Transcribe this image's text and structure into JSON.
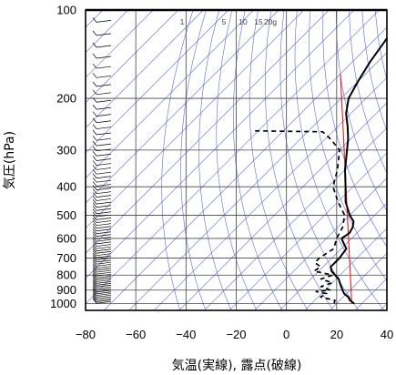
{
  "chart_data": {
    "type": "skew-t",
    "xlabel": "気温(実線), 露点(破線)",
    "ylabel": "気圧(hPa)",
    "xlim": [
      -80,
      40
    ],
    "ylim": [
      1050,
      100
    ],
    "y_scale": "log",
    "x_ticks": [
      -80,
      -60,
      -40,
      -20,
      0,
      20,
      40
    ],
    "x_tick_labels": [
      "−80",
      "−60",
      "−40",
      "−20",
      "0",
      "20",
      "40"
    ],
    "y_ticks": [
      100,
      200,
      300,
      400,
      500,
      600,
      700,
      800,
      900,
      1000
    ],
    "y_tick_labels": [
      "100",
      "200",
      "300",
      "400",
      "500",
      "600",
      "700",
      "800",
      "900",
      "1000"
    ],
    "mixing_ratio_labels": [
      "1",
      "5",
      "10",
      "15",
      "20g"
    ],
    "grid": true,
    "colors": {
      "isotherm": "#5b6bd8",
      "adiabat": "#e0201c",
      "temperature": "#000000",
      "dewpoint": "#000000",
      "grid": "#444444"
    },
    "series": [
      {
        "kind": "temperature",
        "style": "solid",
        "points": [
          [
            1000,
            27
          ],
          [
            975,
            24
          ],
          [
            950,
            22
          ],
          [
            925,
            19
          ],
          [
            900,
            17
          ],
          [
            875,
            15
          ],
          [
            850,
            13
          ],
          [
            825,
            11
          ],
          [
            800,
            8
          ],
          [
            775,
            5
          ],
          [
            750,
            3
          ],
          [
            725,
            3
          ],
          [
            700,
            3
          ],
          [
            650,
            2
          ],
          [
            625,
            -1
          ],
          [
            600,
            -4
          ],
          [
            575,
            -3
          ],
          [
            550,
            -4
          ],
          [
            525,
            -6
          ],
          [
            500,
            -10
          ],
          [
            450,
            -17
          ],
          [
            400,
            -23
          ],
          [
            350,
            -30
          ],
          [
            300,
            -37
          ],
          [
            275,
            -41
          ],
          [
            250,
            -46
          ],
          [
            225,
            -52
          ],
          [
            200,
            -57
          ],
          [
            175,
            -60
          ],
          [
            150,
            -63
          ],
          [
            130,
            -65
          ],
          [
            115,
            -67
          ],
          [
            105,
            -68
          ],
          [
            100,
            -67
          ]
        ]
      },
      {
        "kind": "dewpoint",
        "style": "dashed",
        "points": [
          [
            1000,
            19
          ],
          [
            975,
            18
          ],
          [
            950,
            11
          ],
          [
            925,
            12
          ],
          [
            910,
            7
          ],
          [
            900,
            12
          ],
          [
            875,
            7
          ],
          [
            850,
            10
          ],
          [
            825,
            4
          ],
          [
            800,
            7
          ],
          [
            775,
            -2
          ],
          [
            750,
            -1
          ],
          [
            725,
            -5
          ],
          [
            700,
            -5
          ],
          [
            650,
            -3
          ],
          [
            600,
            -6
          ],
          [
            550,
            -8
          ],
          [
            500,
            -12
          ],
          [
            450,
            -20
          ],
          [
            400,
            -28
          ],
          [
            350,
            -33
          ],
          [
            300,
            -40
          ],
          [
            275,
            -48
          ],
          [
            260,
            -54
          ],
          [
            258,
            -82
          ]
        ]
      }
    ],
    "wind_barbs_column": "left"
  }
}
